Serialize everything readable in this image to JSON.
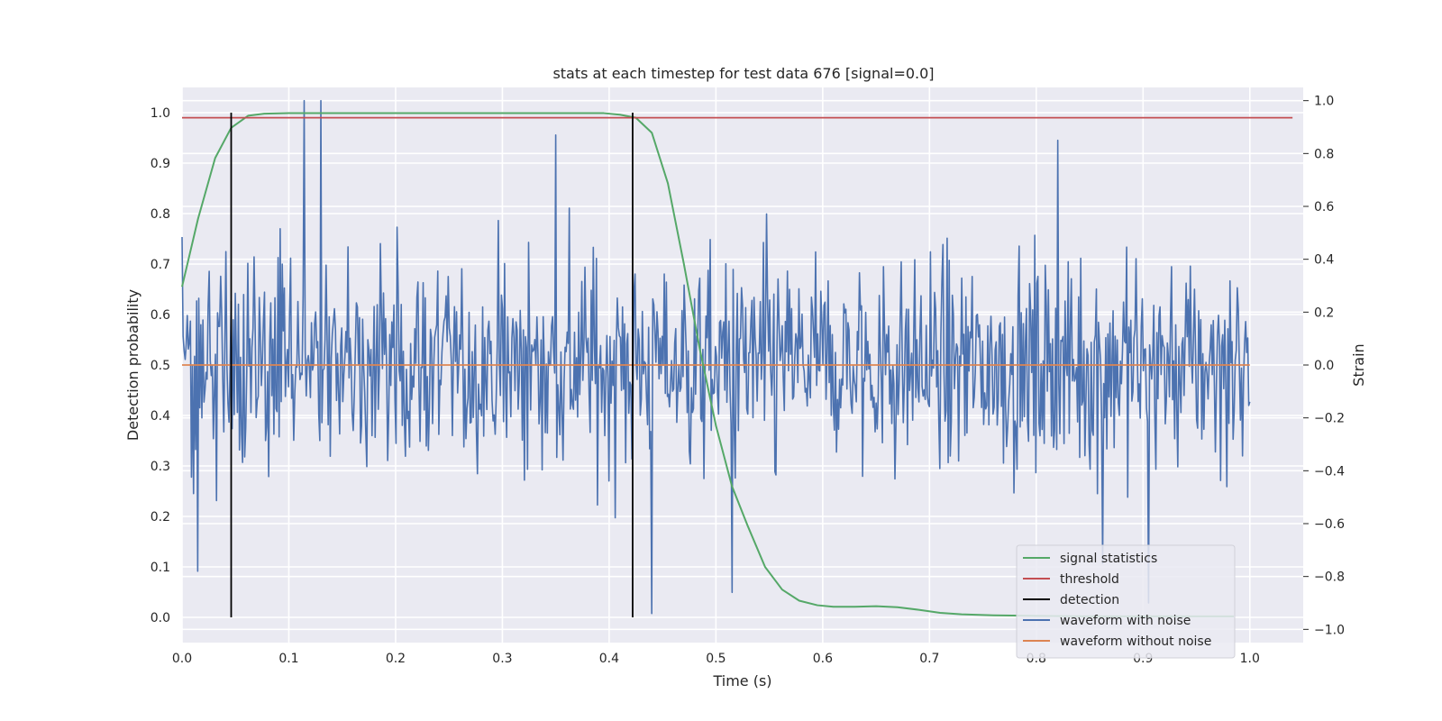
{
  "chart_data": {
    "type": "line",
    "title": "stats at each timestep for test data 676 [signal=0.0]",
    "xlabel": "Time (s)",
    "ylabel_left": "Detection probability",
    "ylabel_right": "Strain",
    "xlim": [
      0.0,
      1.05
    ],
    "ylim_left": [
      -0.05,
      1.05
    ],
    "ylim_right": [
      -1.05,
      1.05
    ],
    "x_ticks": [
      "0.0",
      "0.1",
      "0.2",
      "0.3",
      "0.4",
      "0.5",
      "0.6",
      "0.7",
      "0.8",
      "0.9",
      "1.0"
    ],
    "y_left_ticks": [
      "0.0",
      "0.1",
      "0.2",
      "0.3",
      "0.4",
      "0.5",
      "0.6",
      "0.7",
      "0.8",
      "0.9",
      "1.0"
    ],
    "y_right_ticks": [
      "−1.0",
      "−0.8",
      "−0.6",
      "−0.4",
      "−0.2",
      "0.0",
      "0.2",
      "0.4",
      "0.6",
      "0.8",
      "1.0"
    ],
    "grid": true,
    "legend_position": "bottom-right",
    "series": [
      {
        "name": "signal statistics",
        "axis": "left",
        "color": "#55a868",
        "x": [
          0.0,
          0.015,
          0.031,
          0.046,
          0.062,
          0.077,
          0.1,
          0.2,
          0.3,
          0.395,
          0.41,
          0.425,
          0.44,
          0.455,
          0.47,
          0.485,
          0.5,
          0.515,
          0.53,
          0.546,
          0.562,
          0.578,
          0.595,
          0.61,
          0.63,
          0.65,
          0.67,
          0.69,
          0.71,
          0.73,
          0.76,
          0.8,
          0.85,
          0.9,
          0.95,
          0.985
        ],
        "y": [
          0.655,
          0.79,
          0.91,
          0.97,
          0.994,
          0.998,
          0.999,
          0.999,
          0.999,
          0.999,
          0.996,
          0.99,
          0.96,
          0.86,
          0.7,
          0.53,
          0.38,
          0.26,
          0.18,
          0.1,
          0.055,
          0.033,
          0.024,
          0.021,
          0.021,
          0.022,
          0.02,
          0.015,
          0.009,
          0.006,
          0.004,
          0.003,
          0.002,
          0.002,
          0.002,
          0.002
        ]
      },
      {
        "name": "threshold",
        "axis": "left",
        "color": "#c44e52",
        "x": [
          0.0,
          1.04
        ],
        "y": [
          0.99,
          0.99
        ]
      },
      {
        "name": "detection",
        "axis": "left",
        "color": "#000000",
        "segments": [
          {
            "x": 0.046,
            "y": [
              0.0,
              1.0
            ]
          },
          {
            "x": 0.422,
            "y": [
              0.0,
              1.0
            ]
          }
        ]
      },
      {
        "name": "waveform with noise",
        "axis": "right",
        "color": "#4c72b0",
        "x_range": [
          0.0,
          1.0
        ],
        "n_points": 1024,
        "amplitude_range": [
          -1.0,
          1.0
        ],
        "note_spikes": [
          {
            "x": 0.015,
            "y": -0.78
          },
          {
            "x": 0.114,
            "y": 1.0
          },
          {
            "x": 0.13,
            "y": 1.0
          },
          {
            "x": 0.35,
            "y": 0.87
          },
          {
            "x": 0.44,
            "y": -0.94
          },
          {
            "x": 0.515,
            "y": -0.86
          },
          {
            "x": 0.82,
            "y": 0.85
          },
          {
            "x": 0.862,
            "y": -0.75
          },
          {
            "x": 0.905,
            "y": -0.9
          }
        ]
      },
      {
        "name": "waveform without noise",
        "axis": "right",
        "color": "#dd8452",
        "x": [
          0.0,
          1.0
        ],
        "y": [
          0.0,
          0.0
        ]
      }
    ]
  }
}
